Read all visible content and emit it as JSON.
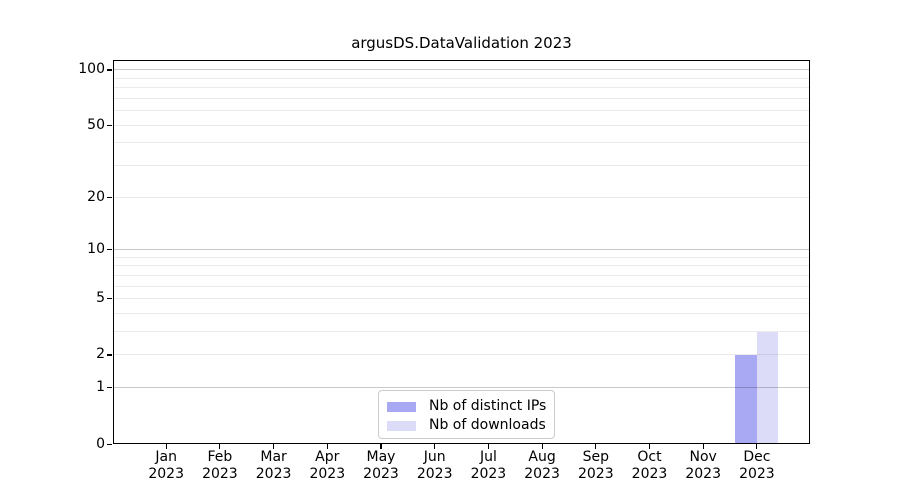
{
  "figure": {
    "title": "argusDS.DataValidation 2023"
  },
  "chart_data": {
    "type": "bar",
    "title": "argusDS.DataValidation 2023",
    "categories": [
      "Jan\n2023",
      "Feb\n2023",
      "Mar\n2023",
      "Apr\n2023",
      "May\n2023",
      "Jun\n2023",
      "Jul\n2023",
      "Aug\n2023",
      "Sep\n2023",
      "Oct\n2023",
      "Nov\n2023",
      "Dec\n2023"
    ],
    "series": [
      {
        "name": "Nb of distinct IPs",
        "color": "#a9a9f3",
        "values": [
          0,
          0,
          0,
          0,
          0,
          0,
          0,
          0,
          0,
          0,
          0,
          2
        ]
      },
      {
        "name": "Nb of downloads",
        "color": "#dcdcf8",
        "values": [
          0,
          0,
          0,
          0,
          0,
          0,
          0,
          0,
          0,
          0,
          0,
          3
        ]
      }
    ],
    "xlabel": "",
    "ylabel": "",
    "yscale": "log1p",
    "ylim": [
      0,
      113
    ],
    "y_ticks_labeled": [
      0,
      1,
      2,
      5,
      10,
      20,
      50,
      100
    ],
    "y_grid_major": [
      1,
      10,
      100
    ],
    "y_grid_minor": [
      2,
      3,
      4,
      5,
      6,
      7,
      8,
      9,
      20,
      30,
      40,
      50,
      60,
      70,
      80,
      90
    ],
    "grid": "on",
    "legend_position": "lower center",
    "colors": {
      "background": "#ffffff",
      "spine": "#000000",
      "grid_major": "#c9c9c9",
      "grid_minor": "#ebebeb",
      "legend_border": "#cbcbcb"
    }
  }
}
